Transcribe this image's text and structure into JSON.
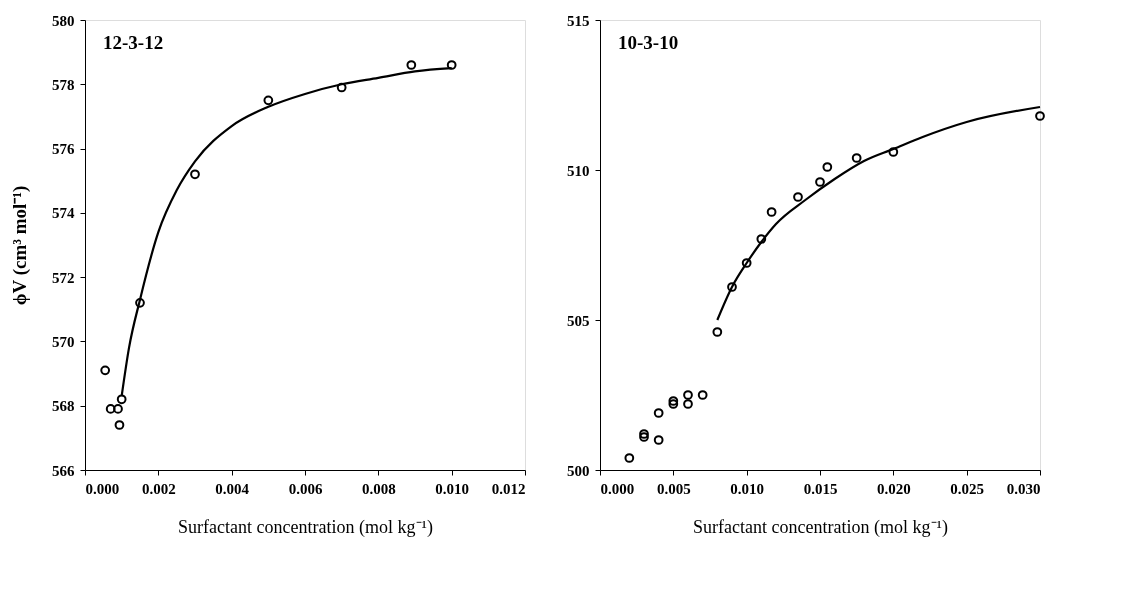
{
  "chart_data": [
    {
      "type": "scatter",
      "annotations": [
        "12-3-12"
      ],
      "xlabel": "Surfactant concentration (mol kg⁻¹)",
      "ylabel": "ϕV (cm³ mol⁻¹)",
      "grid": false,
      "xlim": [
        0,
        0.012
      ],
      "xticks": [
        {
          "value": 0,
          "label": "0.000"
        },
        {
          "value": 0.002,
          "label": "0.002"
        },
        {
          "value": 0.004,
          "label": "0.004"
        },
        {
          "value": 0.006,
          "label": "0.006"
        },
        {
          "value": 0.008,
          "label": "0.008"
        },
        {
          "value": 0.01,
          "label": "0.010"
        },
        {
          "value": 0.012,
          "label": "0.012"
        }
      ],
      "ylim": [
        566,
        580
      ],
      "yticks": [
        566,
        568,
        570,
        572,
        574,
        576,
        578,
        580
      ],
      "series": [
        {
          "type": "scatter",
          "marker": "circle",
          "color": "#000000",
          "x": [
            0.00055,
            0.0007,
            0.0009,
            0.00094,
            0.001,
            0.0015,
            0.003,
            0.005,
            0.007,
            0.0089,
            0.01
          ],
          "values": [
            569.1,
            567.9,
            567.9,
            567.4,
            568.2,
            571.2,
            575.2,
            577.5,
            577.9,
            578.6,
            578.6
          ]
        },
        {
          "type": "line",
          "color": "#000000",
          "line_style": "solid",
          "x": [
            0.001,
            0.0012,
            0.0015,
            0.002,
            0.0025,
            0.003,
            0.004,
            0.005,
            0.006,
            0.007,
            0.008,
            0.009,
            0.01
          ],
          "values": [
            568.3,
            569.8,
            571.3,
            573.4,
            574.7,
            575.6,
            576.7,
            577.3,
            577.7,
            578.0,
            578.2,
            578.4,
            578.5
          ]
        }
      ]
    },
    {
      "type": "scatter",
      "annotations": [
        "10-3-10"
      ],
      "xlabel": "Surfactant concentration (mol kg⁻¹)",
      "grid": false,
      "xlim": [
        0,
        0.03
      ],
      "xticks": [
        {
          "value": 0,
          "label": "0.000"
        },
        {
          "value": 0.005,
          "label": "0.005"
        },
        {
          "value": 0.01,
          "label": "0.010"
        },
        {
          "value": 0.015,
          "label": "0.015"
        },
        {
          "value": 0.02,
          "label": "0.020"
        },
        {
          "value": 0.025,
          "label": "0.025"
        },
        {
          "value": 0.03,
          "label": "0.030"
        }
      ],
      "ylim": [
        500,
        515
      ],
      "yticks": [
        500,
        505,
        510,
        515
      ],
      "series": [
        {
          "type": "scatter",
          "marker": "circle",
          "color": "#000000",
          "x": [
            0.002,
            0.003,
            0.003,
            0.004,
            0.004,
            0.005,
            0.005,
            0.006,
            0.006,
            0.007,
            0.008,
            0.009,
            0.01,
            0.011,
            0.0117,
            0.0135,
            0.015,
            0.0155,
            0.0175,
            0.02,
            0.03
          ],
          "values": [
            500.4,
            501.2,
            501.1,
            501.0,
            501.9,
            502.3,
            502.2,
            502.5,
            502.2,
            502.5,
            504.6,
            506.1,
            506.9,
            507.7,
            508.6,
            509.1,
            509.6,
            510.1,
            510.4,
            510.6,
            511.8
          ]
        },
        {
          "type": "line",
          "color": "#000000",
          "line_style": "solid",
          "x": [
            0.008,
            0.009,
            0.01,
            0.011,
            0.012,
            0.014,
            0.016,
            0.018,
            0.02,
            0.022,
            0.025,
            0.03
          ],
          "values": [
            505.0,
            506.1,
            506.9,
            507.6,
            508.2,
            509.0,
            509.7,
            510.3,
            510.7,
            511.1,
            511.6,
            512.1
          ]
        }
      ]
    }
  ]
}
